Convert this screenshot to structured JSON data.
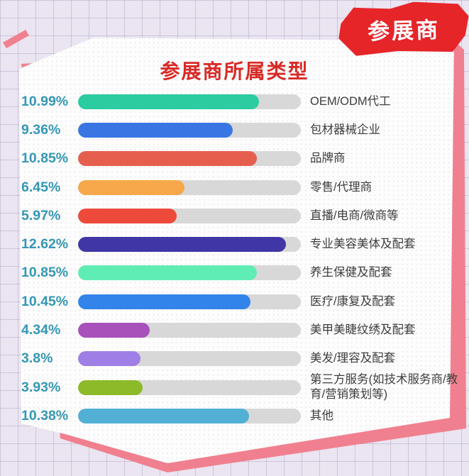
{
  "badge": {
    "label": "参展商"
  },
  "chart_data": {
    "type": "bar",
    "orientation": "horizontal",
    "title": "参展商所属类型",
    "categories": [
      "OEM/ODM代工",
      "包材器械企业",
      "品牌商",
      "零售/代理商",
      "直播/电商/微商等",
      "专业美容美体及配套",
      "养生保健及配套",
      "医疗/康复及配套",
      "美甲美睫纹绣及配套",
      "美发/理容及配套",
      "第三方服务(如技术服务商/教育/营销策划等)",
      "其他"
    ],
    "values": [
      10.99,
      9.36,
      10.85,
      6.45,
      5.97,
      12.62,
      10.85,
      10.45,
      4.34,
      3.8,
      3.93,
      10.38
    ],
    "value_labels": [
      "10.99%",
      "9.36%",
      "10.85%",
      "6.45%",
      "5.97%",
      "12.62%",
      "10.85%",
      "10.45%",
      "4.34%",
      "3.8%",
      "3.93%",
      "10.38%"
    ],
    "bar_colors": [
      "#2bcc9f",
      "#3a76e3",
      "#e65f4e",
      "#f6a84a",
      "#ee4a3c",
      "#4036a6",
      "#5fedb4",
      "#3384ea",
      "#a851bb",
      "#9f7fe6",
      "#8cba29",
      "#52b0d4"
    ],
    "fill_widths_pct": [
      81.3,
      69.3,
      80.3,
      47.7,
      44.2,
      93.4,
      80.3,
      77.3,
      32.1,
      28.1,
      29.1,
      76.8
    ],
    "xlim": [
      0,
      13.5
    ],
    "track_color": "#d8d8d8",
    "value_label_color": "#3597b6",
    "category_label_color": "#3d3d3d",
    "title_color": "#d92a27",
    "legend": "none",
    "grid": "off"
  },
  "colors": {
    "background": "#eae5f1",
    "grid_line": "#a498ba",
    "card": "#fdfdfd",
    "backing_pink": "#f0808f",
    "badge_red": "#e62529"
  }
}
